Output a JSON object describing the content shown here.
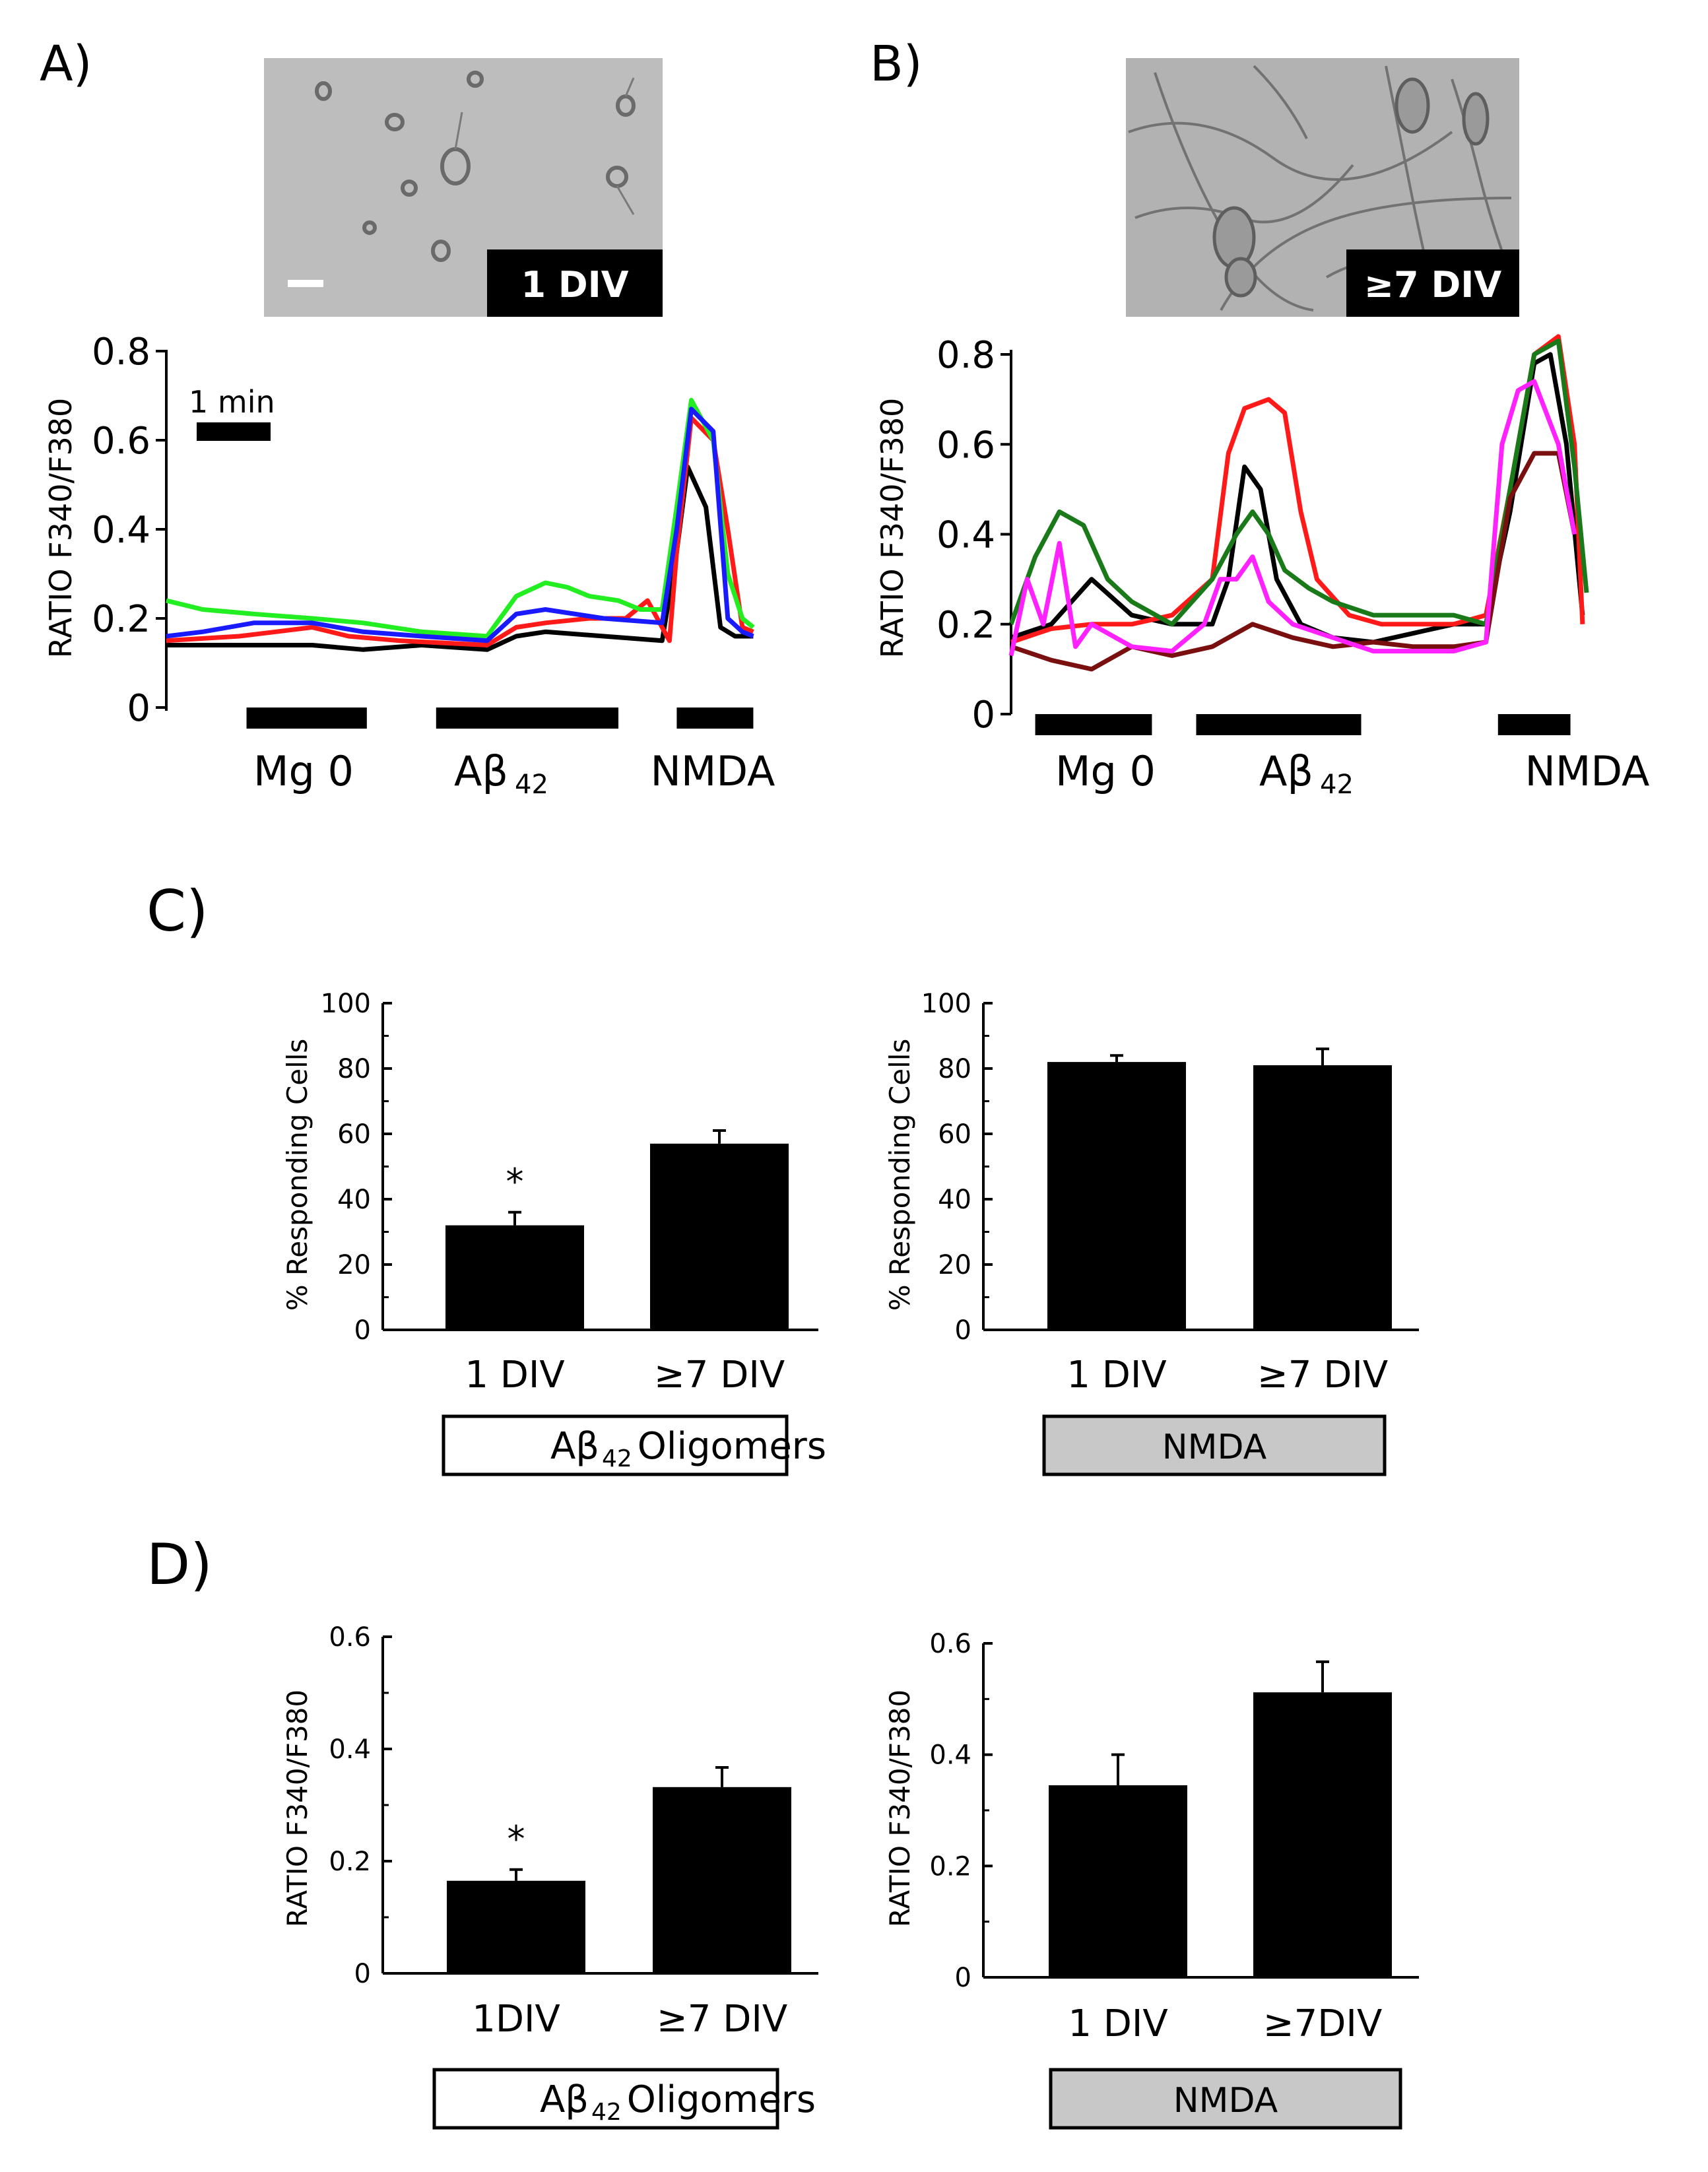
{
  "panels": {
    "a": {
      "label": "A)",
      "micrograph_label": "1 DIV",
      "ylabel": "RATIO F340/F380",
      "yticks": [
        "0",
        "0.2",
        "0.4",
        "0.6",
        "0.8"
      ],
      "timebar_label": "1 min",
      "stimuli": [
        "Mg 0",
        "Aβ",
        "42",
        "NMDA"
      ]
    },
    "b": {
      "label": "B)",
      "micrograph_label": "≥7 DIV",
      "ylabel": "RATIO F340/F380",
      "yticks": [
        "0",
        "0.2",
        "0.4",
        "0.6",
        "0.8"
      ],
      "stimuli": [
        "Mg 0",
        "Aβ",
        "42",
        "NMDA"
      ]
    },
    "c": {
      "label": "C)",
      "ylabel": "% Responding Cells",
      "yticks": [
        "0",
        "20",
        "40",
        "60",
        "80",
        "100"
      ],
      "left_box": [
        "Aβ",
        "42",
        " Oligomers"
      ],
      "right_box": "NMDA"
    },
    "d": {
      "label": "D)",
      "ylabel": "RATIO F340/F380",
      "yticks": [
        "0",
        "0.2",
        "0.4",
        "0.6"
      ],
      "left_box": [
        "Aβ",
        "42",
        " Oligomers"
      ],
      "right_box": "NMDA"
    }
  },
  "colors": {
    "black": "#000000",
    "red": "#ff1a1a",
    "green": "#22ee22",
    "blue": "#1a1aff",
    "darkgreen": "#1a7a1a",
    "magenta": "#ff22ff",
    "darkred": "#7a0f0f",
    "box_gray": "#c8c8c8"
  },
  "chart_data": [
    {
      "id": "A",
      "type": "line",
      "title": "1 DIV",
      "ylabel": "RATIO F340/F380",
      "ylim": [
        0,
        0.8
      ],
      "xlim": [
        0,
        8.2
      ],
      "xunit": "min",
      "stimuli": [
        {
          "label": "Mg 0",
          "start": 1.1,
          "end": 2.75
        },
        {
          "label": "Aβ42",
          "start": 3.7,
          "end": 6.2
        },
        {
          "label": "NMDA",
          "start": 7.0,
          "end": 8.05
        }
      ],
      "series": [
        {
          "name": "black",
          "color": "#000000",
          "x": [
            0,
            1,
            2,
            2.7,
            3.5,
            4.4,
            4.8,
            5.2,
            6,
            6.8,
            7.0,
            7.15,
            7.4,
            7.6,
            7.8,
            8.05
          ],
          "y": [
            0.14,
            0.14,
            0.14,
            0.13,
            0.14,
            0.13,
            0.16,
            0.17,
            0.16,
            0.15,
            0.35,
            0.54,
            0.45,
            0.18,
            0.16,
            0.16
          ]
        },
        {
          "name": "red",
          "color": "#ff1a1a",
          "x": [
            0,
            1,
            1.5,
            2,
            2.5,
            3.2,
            4.4,
            4.8,
            5.2,
            5.8,
            6.3,
            6.6,
            6.9,
            7.0,
            7.2,
            7.5,
            7.7,
            7.9,
            8.05
          ],
          "y": [
            0.15,
            0.16,
            0.17,
            0.18,
            0.16,
            0.15,
            0.14,
            0.18,
            0.19,
            0.2,
            0.2,
            0.24,
            0.15,
            0.35,
            0.65,
            0.6,
            0.4,
            0.18,
            0.17
          ]
        },
        {
          "name": "green",
          "color": "#22ee22",
          "x": [
            0,
            0.5,
            1.2,
            2,
            2.7,
            3.5,
            4.4,
            4.8,
            5.2,
            5.5,
            5.8,
            6.2,
            6.5,
            6.8,
            7.0,
            7.2,
            7.5,
            7.7,
            7.9,
            8.05
          ],
          "y": [
            0.24,
            0.22,
            0.21,
            0.2,
            0.19,
            0.17,
            0.16,
            0.25,
            0.28,
            0.27,
            0.25,
            0.24,
            0.22,
            0.22,
            0.45,
            0.69,
            0.6,
            0.3,
            0.2,
            0.18
          ]
        },
        {
          "name": "blue",
          "color": "#1a1aff",
          "x": [
            0,
            0.5,
            1.2,
            2,
            2.7,
            3.5,
            4.4,
            4.8,
            5.2,
            6,
            6.8,
            7.0,
            7.2,
            7.5,
            7.7,
            7.9,
            8.05
          ],
          "y": [
            0.16,
            0.17,
            0.19,
            0.19,
            0.17,
            0.16,
            0.15,
            0.21,
            0.22,
            0.2,
            0.19,
            0.4,
            0.67,
            0.62,
            0.2,
            0.17,
            0.16
          ]
        }
      ]
    },
    {
      "id": "B",
      "type": "line",
      "title": "≥7 DIV",
      "ylabel": "RATIO F340/F380",
      "ylim": [
        0,
        0.8
      ],
      "xlim": [
        0,
        8.2
      ],
      "xunit": "min",
      "stimuli": [
        {
          "label": "Mg 0",
          "start": 0.3,
          "end": 1.75
        },
        {
          "label": "Aβ42",
          "start": 2.3,
          "end": 4.35
        },
        {
          "label": "NMDA",
          "start": 6.05,
          "end": 6.95
        }
      ],
      "series": [
        {
          "name": "black",
          "color": "#000000",
          "x": [
            0,
            0.5,
            1,
            1.5,
            2,
            2.5,
            2.7,
            2.9,
            3.1,
            3.3,
            3.6,
            4,
            4.5,
            5,
            5.5,
            5.9,
            6.2,
            6.5,
            6.7,
            6.9,
            7.1
          ],
          "y": [
            0.17,
            0.2,
            0.3,
            0.22,
            0.2,
            0.2,
            0.3,
            0.55,
            0.5,
            0.3,
            0.2,
            0.17,
            0.16,
            0.18,
            0.2,
            0.2,
            0.45,
            0.78,
            0.8,
            0.6,
            0.22
          ]
        },
        {
          "name": "red",
          "color": "#ff1a1a",
          "x": [
            0,
            0.5,
            1,
            1.5,
            2,
            2.5,
            2.7,
            2.9,
            3.2,
            3.4,
            3.6,
            3.8,
            4.2,
            4.6,
            5,
            5.5,
            5.9,
            6.2,
            6.5,
            6.8,
            7.0,
            7.1
          ],
          "y": [
            0.16,
            0.19,
            0.2,
            0.2,
            0.22,
            0.3,
            0.58,
            0.68,
            0.7,
            0.67,
            0.45,
            0.3,
            0.22,
            0.2,
            0.2,
            0.2,
            0.22,
            0.5,
            0.8,
            0.84,
            0.6,
            0.2
          ]
        },
        {
          "name": "darkgreen",
          "color": "#1a7a1a",
          "x": [
            0,
            0.3,
            0.6,
            0.9,
            1.2,
            1.5,
            2,
            2.5,
            2.8,
            3.0,
            3.2,
            3.4,
            3.7,
            4,
            4.5,
            5,
            5.5,
            5.9,
            6.2,
            6.5,
            6.8,
            7.0,
            7.15
          ],
          "y": [
            0.2,
            0.35,
            0.45,
            0.42,
            0.3,
            0.25,
            0.2,
            0.3,
            0.4,
            0.45,
            0.4,
            0.32,
            0.28,
            0.25,
            0.22,
            0.22,
            0.22,
            0.2,
            0.5,
            0.8,
            0.83,
            0.55,
            0.27
          ]
        },
        {
          "name": "darkred",
          "color": "#7a0f0f",
          "x": [
            0,
            0.5,
            1,
            1.5,
            2,
            2.5,
            3,
            3.5,
            4,
            4.5,
            5,
            5.5,
            5.9,
            6.2,
            6.5,
            6.8,
            7.0
          ],
          "y": [
            0.15,
            0.12,
            0.1,
            0.15,
            0.13,
            0.15,
            0.2,
            0.17,
            0.15,
            0.16,
            0.15,
            0.15,
            0.16,
            0.48,
            0.58,
            0.58,
            0.4
          ]
        },
        {
          "name": "magenta",
          "color": "#ff22ff",
          "x": [
            0,
            0.2,
            0.4,
            0.6,
            0.8,
            1,
            1.5,
            2,
            2.4,
            2.6,
            2.8,
            3.0,
            3.2,
            3.5,
            4,
            4.5,
            5,
            5.5,
            5.9,
            6.1,
            6.3,
            6.5,
            6.8,
            7.0
          ],
          "y": [
            0.13,
            0.3,
            0.2,
            0.38,
            0.15,
            0.2,
            0.15,
            0.14,
            0.2,
            0.3,
            0.3,
            0.35,
            0.25,
            0.2,
            0.17,
            0.14,
            0.14,
            0.14,
            0.16,
            0.6,
            0.72,
            0.74,
            0.6,
            0.4
          ]
        }
      ]
    },
    {
      "id": "C-left",
      "type": "bar",
      "categories": [
        "1 DIV",
        "≥7 DIV"
      ],
      "values": [
        32,
        57
      ],
      "errors": [
        4,
        4
      ],
      "significance": [
        "*",
        ""
      ],
      "ylabel": "% Responding Cells",
      "ylim": [
        0,
        100
      ],
      "group_label": "Aβ42 Oligomers"
    },
    {
      "id": "C-right",
      "type": "bar",
      "categories": [
        "1 DIV",
        "≥7 DIV"
      ],
      "values": [
        82,
        81
      ],
      "errors": [
        2,
        5
      ],
      "significance": [
        "",
        ""
      ],
      "ylabel": "% Responding Cells",
      "ylim": [
        0,
        100
      ],
      "group_label": "NMDA"
    },
    {
      "id": "D-left",
      "type": "bar",
      "categories": [
        "1DIV",
        "≥7 DIV"
      ],
      "values": [
        0.165,
        0.332
      ],
      "errors": [
        0.02,
        0.035
      ],
      "significance": [
        "*",
        ""
      ],
      "ylabel": "RATIO F340/F380",
      "ylim": [
        0,
        0.6
      ],
      "group_label": "Aβ42 Oligomers"
    },
    {
      "id": "D-right",
      "type": "bar",
      "categories": [
        "1  DIV",
        "≥7DIV"
      ],
      "values": [
        0.345,
        0.512
      ],
      "errors": [
        0.055,
        0.055
      ],
      "significance": [
        "",
        ""
      ],
      "ylabel": "RATIO F340/F380",
      "ylim": [
        0,
        0.6
      ],
      "group_label": "NMDA"
    }
  ]
}
